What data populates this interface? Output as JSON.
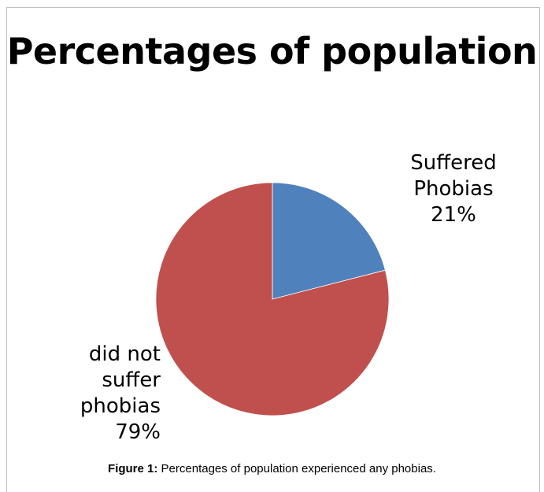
{
  "chart_data": {
    "type": "pie",
    "title": "Percentages of population",
    "categories": [
      "Suffered Phobias",
      "did not suffer phobias"
    ],
    "values": [
      21,
      79
    ],
    "unit": "%",
    "slices": [
      {
        "label_lines": [
          "Suffered",
          "Phobias"
        ],
        "value": 21,
        "value_text": "21%",
        "color": "#4f81bd"
      },
      {
        "label_lines": [
          "did not",
          "suffer",
          "phobias"
        ],
        "value": 79,
        "value_text": "79%",
        "color": "#c0504d"
      }
    ],
    "legend": "none"
  },
  "caption": {
    "label": "Figure 1:",
    "text": "Percentages of population experienced any phobias."
  }
}
